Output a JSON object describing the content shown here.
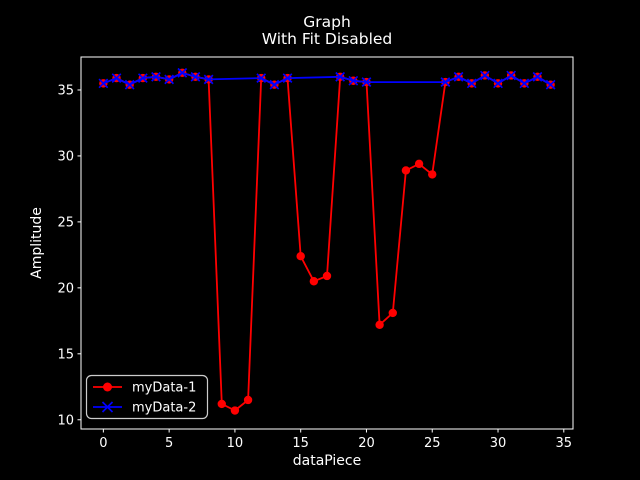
{
  "figure": {
    "background": "#000000",
    "title_line1": "Graph",
    "title_line2": "With Fit Disabled"
  },
  "axes": {
    "xlabel": "dataPiece",
    "ylabel": "Amplitude"
  },
  "colors": {
    "series1": "#ff0000",
    "series2": "#0000ff",
    "text": "#ffffff",
    "spine": "#ffffff",
    "legend_border": "#cccccc",
    "background": "#000000"
  },
  "legend": {
    "position": "lower left",
    "items": [
      {
        "label": "myData-1",
        "color": "#ff0000",
        "marker": "circle"
      },
      {
        "label": "myData-2",
        "color": "#0000ff",
        "marker": "x"
      }
    ]
  },
  "chart_data": {
    "type": "line",
    "title": "Graph\nWith Fit Disabled",
    "xlabel": "dataPiece",
    "ylabel": "Amplitude",
    "xlim": [
      -1.7,
      35.7
    ],
    "ylim": [
      9.3,
      37.5
    ],
    "xticks": [
      0,
      5,
      10,
      15,
      20,
      25,
      30,
      35
    ],
    "yticks": [
      10,
      15,
      20,
      25,
      30,
      35
    ],
    "grid": false,
    "legend_position": "lower left",
    "series": [
      {
        "name": "myData-1",
        "color": "#ff0000",
        "marker": "circle",
        "x": [
          0,
          1,
          2,
          3,
          4,
          5,
          6,
          7,
          8,
          9,
          10,
          11,
          12,
          13,
          14,
          15,
          16,
          17,
          18,
          19,
          20,
          21,
          22,
          23,
          24,
          25,
          26,
          27,
          28,
          29,
          30,
          31,
          32,
          33,
          34
        ],
        "y": [
          35.5,
          35.9,
          35.4,
          35.9,
          36.0,
          35.8,
          36.3,
          36.0,
          35.8,
          11.2,
          10.7,
          11.5,
          35.9,
          35.4,
          35.9,
          22.4,
          20.5,
          20.9,
          36.0,
          35.7,
          35.6,
          17.2,
          18.1,
          28.9,
          29.4,
          28.6,
          35.6,
          36.0,
          35.5,
          36.1,
          35.5,
          36.1,
          35.5,
          36.0,
          35.4
        ]
      },
      {
        "name": "myData-2",
        "color": "#0000ff",
        "marker": "x",
        "x": [
          0,
          1,
          2,
          3,
          4,
          5,
          6,
          7,
          8,
          12,
          13,
          14,
          18,
          19,
          20,
          26,
          27,
          28,
          29,
          30,
          31,
          32,
          33,
          34
        ],
        "y": [
          35.5,
          35.9,
          35.4,
          35.9,
          36.0,
          35.8,
          36.3,
          36.0,
          35.8,
          35.9,
          35.4,
          35.9,
          36.0,
          35.7,
          35.6,
          35.6,
          36.0,
          35.5,
          36.1,
          35.5,
          36.1,
          35.5,
          36.0,
          35.4
        ]
      }
    ]
  }
}
